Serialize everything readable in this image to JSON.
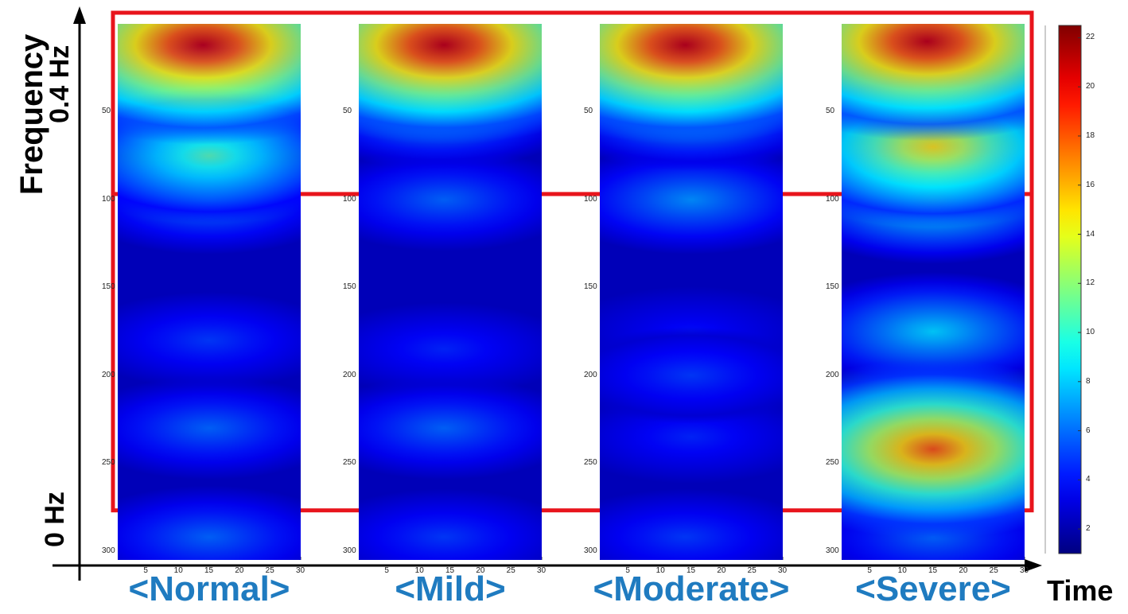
{
  "chart_data": {
    "type": "heatmap",
    "title": "",
    "xlabel": "Time",
    "ylabel": "Frequency",
    "y_top_label": "0.4 Hz",
    "y_bottom_label": "0 Hz",
    "panels": [
      {
        "name": "<Normal>"
      },
      {
        "name": "<Mild>"
      },
      {
        "name": "<Moderate>"
      },
      {
        "name": "<Severe>"
      }
    ],
    "x_ticks": [
      5,
      10,
      15,
      20,
      25,
      30
    ],
    "xlim": [
      0,
      30
    ],
    "y_ticks": [
      50,
      100,
      150,
      200,
      250,
      300
    ],
    "ylim": [
      0,
      305
    ],
    "colorbar_ticks": [
      2,
      4,
      6,
      8,
      10,
      12,
      14,
      16,
      18,
      20,
      22
    ],
    "colorbar_range": [
      1,
      22.5
    ],
    "highlight_boxes": [
      {
        "region": "high-frequency",
        "y_range": [
          0,
          95
        ]
      },
      {
        "region": "low-frequency",
        "y_range": [
          100,
          275
        ]
      }
    ],
    "blobs": [
      [
        {
          "t": 14,
          "f": 12,
          "v": 21
        },
        {
          "t": 15,
          "f": 45,
          "v": 10
        },
        {
          "t": 15,
          "f": 75,
          "v": 11
        },
        {
          "t": 15,
          "f": 100,
          "v": 7
        },
        {
          "t": 15,
          "f": 180,
          "v": 5
        },
        {
          "t": 15,
          "f": 230,
          "v": 6
        },
        {
          "t": 15,
          "f": 292,
          "v": 6
        }
      ],
      [
        {
          "t": 14,
          "f": 12,
          "v": 21
        },
        {
          "t": 13,
          "f": 50,
          "v": 8
        },
        {
          "t": 14,
          "f": 100,
          "v": 6
        },
        {
          "t": 14,
          "f": 185,
          "v": 4.5
        },
        {
          "t": 14,
          "f": 230,
          "v": 6
        },
        {
          "t": 14,
          "f": 292,
          "v": 5
        }
      ],
      [
        {
          "t": 14,
          "f": 12,
          "v": 21
        },
        {
          "t": 15,
          "f": 50,
          "v": 8.5
        },
        {
          "t": 15,
          "f": 100,
          "v": 7
        },
        {
          "t": 15,
          "f": 175,
          "v": 4
        },
        {
          "t": 15,
          "f": 200,
          "v": 5
        },
        {
          "t": 15,
          "f": 235,
          "v": 4.5
        },
        {
          "t": 14,
          "f": 292,
          "v": 5
        }
      ],
      [
        {
          "t": 14,
          "f": 10,
          "v": 21
        },
        {
          "t": 15,
          "f": 70,
          "v": 15
        },
        {
          "t": 15,
          "f": 100,
          "v": 10
        },
        {
          "t": 15,
          "f": 175,
          "v": 8.5
        },
        {
          "t": 15,
          "f": 242,
          "v": 18
        },
        {
          "t": 15,
          "f": 292,
          "v": 6
        }
      ]
    ]
  }
}
